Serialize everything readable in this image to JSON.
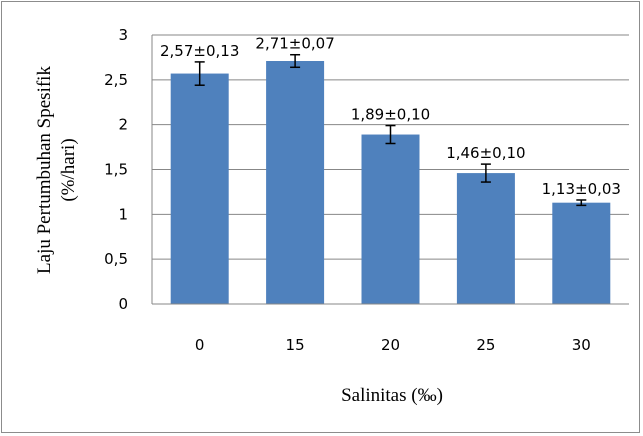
{
  "chart_data": {
    "type": "bar",
    "categories": [
      "0",
      "15",
      "20",
      "25",
      "30"
    ],
    "values": [
      2.57,
      2.71,
      1.89,
      1.46,
      1.13
    ],
    "errors": [
      0.13,
      0.07,
      0.1,
      0.1,
      0.03
    ],
    "data_labels": [
      "2,57±0,13",
      "2,71±0,07",
      "1,89±0,10",
      "1,46±0,10",
      "1,13±0,03"
    ],
    "xlabel": "Salinitas (‰)",
    "ylabel_line1": "Laju Pertumbuhan Spesifik",
    "ylabel_line2": "(%/hari)",
    "ylim": [
      0,
      3
    ],
    "yticks": [
      0,
      0.5,
      1,
      1.5,
      2,
      2.5,
      3
    ],
    "ytick_labels": [
      "0",
      "0,5",
      "1",
      "1,5",
      "2",
      "2,5",
      "3"
    ],
    "grid": "horizontal",
    "legend": "none",
    "colors": {
      "bar": "#4f81bd",
      "grid": "#878787",
      "axis": "#878787"
    }
  }
}
